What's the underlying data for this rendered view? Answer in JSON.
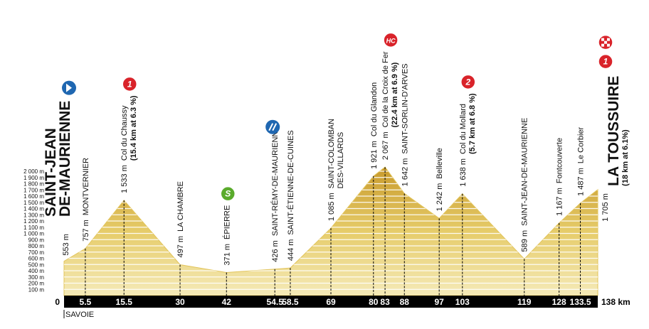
{
  "chart_data": {
    "type": "profile",
    "x": [
      0,
      5.5,
      15.5,
      30,
      42,
      54.5,
      58.5,
      69,
      80,
      83,
      88,
      97,
      103,
      119,
      128,
      133.5,
      138
    ],
    "values": [
      553,
      757,
      1533,
      497,
      371,
      426,
      444,
      1085,
      1921,
      2067,
      1642,
      1242,
      1638,
      589,
      1167,
      1487,
      1705
    ],
    "value_labels": [
      "553 m",
      "757 m",
      "1 533 m",
      "497 m",
      "371 m",
      "426 m",
      "444 m",
      "1 085 m",
      "1 921 m",
      "2 067 m",
      "1 642 m",
      "1 242 m",
      "1 638 m",
      "589 m",
      "1 167 m",
      "1 487 m",
      "1 705 m"
    ],
    "labels": [
      [
        "SAINT-JEAN",
        "DE-MAURIENNE"
      ],
      "MONTVERNIER",
      "Col du Chaussy",
      "LA CHAMBRE",
      "ÉPIERRE",
      "SAINT-RÉMY-DE-MAURIENNE",
      "SAINT-ÉTIENNE-DE-CUINES",
      [
        "SAINT-COLOMBAN",
        "DES-VILLARDS"
      ],
      "Col du Glandon",
      "Col de la Croix de Fer",
      "SAINT-SORLIN-D'ARVES",
      "Belleville",
      "Col du Mollard",
      "SAINT-JEAN-DE-MAURIENNE",
      "Fontcouverte",
      "Le Corbier",
      "LA TOUSSUIRE"
    ],
    "details": [
      null,
      null,
      "(15.4 km at 6.3 %)",
      null,
      null,
      null,
      null,
      null,
      null,
      "(22.4 km at 6.9 %)",
      null,
      null,
      "(5.7 km at 6.8 %)",
      null,
      null,
      null,
      "(18 km at 6.1%)"
    ],
    "badges": [
      null,
      null,
      "1",
      null,
      "S",
      null,
      null,
      null,
      null,
      "HC",
      null,
      null,
      "2",
      null,
      null,
      null,
      "1"
    ],
    "badge_colors": [
      null,
      null,
      "#d9232a",
      null,
      "#5aab2c",
      null,
      null,
      null,
      null,
      "#d9232a",
      null,
      null,
      "#d9232a",
      null,
      null,
      null,
      "#d9232a"
    ],
    "xlim": [
      0,
      138
    ],
    "xticks": [
      0,
      5.5,
      15.5,
      30,
      42,
      54.5,
      58.5,
      69,
      80,
      83,
      88,
      97,
      103,
      119,
      128,
      133.5,
      {
        "value": 138,
        "label": "138 km"
      }
    ],
    "ylim": [
      0,
      2000
    ],
    "yticks": [
      {
        "value": 2000,
        "label": "2 000 m"
      },
      {
        "value": 1900,
        "label": "1 900 m"
      },
      {
        "value": 1800,
        "label": "1 800 m"
      },
      {
        "value": 1700,
        "label": "1 700 m"
      },
      {
        "value": 1600,
        "label": "1 600 m"
      },
      {
        "value": 1500,
        "label": "1 500 m"
      },
      {
        "value": 1400,
        "label": "1 400 m"
      },
      {
        "value": 1300,
        "label": "1 300 m"
      },
      {
        "value": 1200,
        "label": "1 200 m"
      },
      {
        "value": 1100,
        "label": "1 100 m"
      },
      {
        "value": 1000,
        "label": "1 000 m"
      },
      {
        "value": 900,
        "label": "900 m"
      },
      {
        "value": 800,
        "label": "800 m"
      },
      {
        "value": 700,
        "label": "700 m"
      },
      {
        "value": 600,
        "label": "600 m"
      },
      {
        "value": 500,
        "label": "500 m"
      },
      {
        "value": 400,
        "label": "400 m"
      },
      {
        "value": 300,
        "label": "300 m"
      },
      {
        "value": 200,
        "label": "200 m"
      },
      {
        "value": 100,
        "label": "100 m"
      }
    ],
    "grid": true,
    "color": "#e2c45a",
    "region": "SAVOIE"
  }
}
